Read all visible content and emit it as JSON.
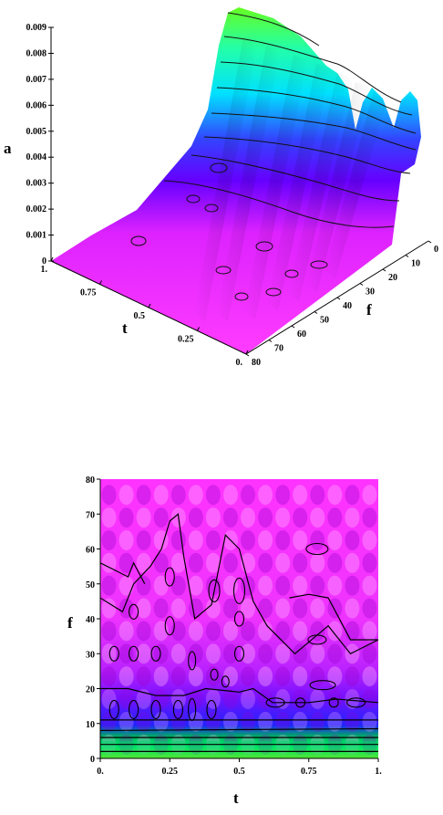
{
  "chart_data": [
    {
      "type": "surface",
      "xlabel": "t",
      "ylabel": "f",
      "zlabel": "a",
      "x_ticks": [
        "1.",
        "0.75",
        "0.5",
        "0.25",
        "0."
      ],
      "y_ticks": [
        "0",
        "10",
        "20",
        "30",
        "40",
        "50",
        "60",
        "70",
        "80"
      ],
      "z_ticks": [
        "0",
        "0.001",
        "0.002",
        "0.003",
        "0.004",
        "0.005",
        "0.006",
        "0.007",
        "0.008",
        "0.009"
      ],
      "xlim": [
        0,
        1
      ],
      "ylim": [
        0,
        80
      ],
      "zlim": [
        0,
        0.009
      ],
      "colors": [
        "#ff00ff",
        "#8800ff",
        "#00e5ff",
        "#33ff33"
      ]
    },
    {
      "type": "heatmap",
      "xlabel": "t",
      "ylabel": "f",
      "x_ticks": [
        "0.",
        "0.25",
        "0.5",
        "0.75",
        "1."
      ],
      "y_ticks": [
        "0",
        "10",
        "20",
        "30",
        "40",
        "50",
        "60",
        "70",
        "80"
      ],
      "xlim": [
        0,
        1
      ],
      "ylim": [
        0,
        80
      ],
      "colors": [
        "#ff00ff",
        "#8800ff",
        "#2222ff",
        "#00ff66",
        "#aaff00"
      ]
    }
  ]
}
